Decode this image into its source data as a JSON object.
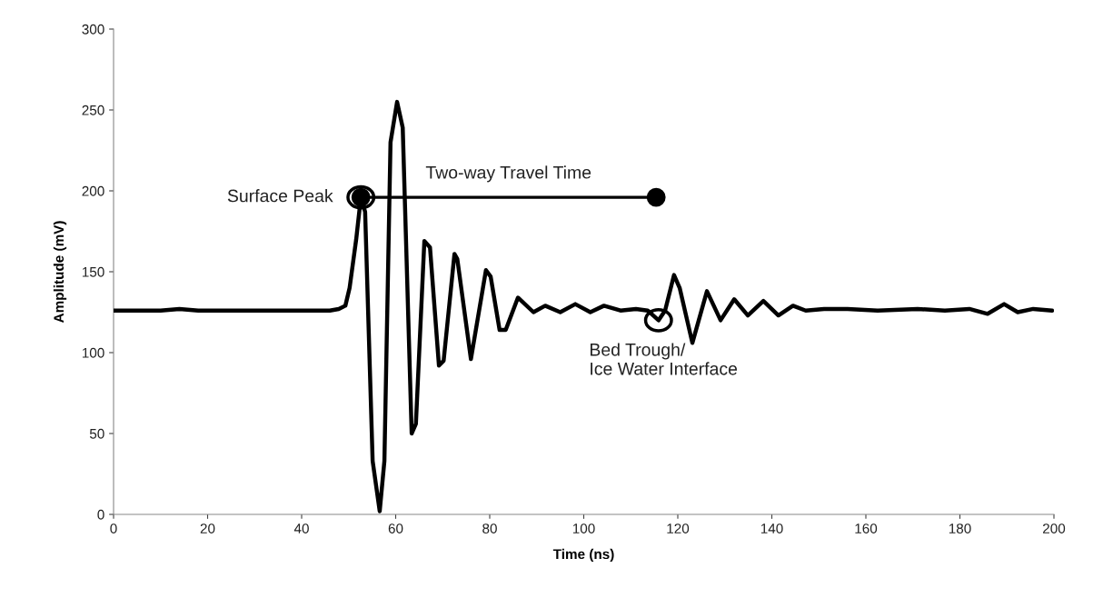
{
  "chart_data": {
    "type": "line",
    "xlabel": "Time (ns)",
    "ylabel": "Amplitude (mV)",
    "xlim": [
      0,
      200
    ],
    "ylim": [
      0,
      300
    ],
    "xticks": [
      0,
      20,
      40,
      60,
      80,
      100,
      120,
      140,
      160,
      180,
      200
    ],
    "yticks": [
      0,
      50,
      100,
      150,
      200,
      250,
      300
    ],
    "grid": false,
    "marker": "none",
    "line_style": "solid",
    "series": [
      {
        "color": "#000000",
        "x": [
          0,
          10,
          14,
          18,
          30,
          40,
          46,
          47.9,
          49.3,
          50.2,
          51.6,
          52.6,
          53.5,
          55.1,
          56.6,
          57.6,
          58.9,
          60.3,
          61.5,
          63.4,
          64.3,
          66.1,
          67.3,
          69.2,
          70.2,
          72.5,
          73.1,
          76.0,
          79.2,
          80.2,
          82.1,
          83.4,
          86,
          89.3,
          91.8,
          95,
          98.2,
          101.4,
          104.3,
          107.8,
          111.1,
          113.6,
          115.9,
          117.3,
          119.2,
          120.4,
          123.1,
          126.2,
          129.1,
          132,
          134.9,
          138.2,
          141.4,
          144.5,
          147.2,
          151.1,
          156.1,
          162.5,
          171,
          176.8,
          182,
          185.9,
          189.4,
          192.3,
          195.6,
          199.6
        ],
        "values": [
          126,
          126,
          127,
          126,
          126,
          126,
          126,
          127,
          129,
          140,
          170,
          196,
          187,
          33,
          2,
          33,
          230,
          255,
          239,
          50,
          56,
          169,
          165,
          92,
          95,
          161,
          158,
          96,
          151,
          147,
          114,
          114,
          134,
          125,
          129,
          125,
          130,
          125,
          129,
          126,
          127,
          126,
          120,
          126,
          148,
          140,
          106,
          138,
          120,
          133,
          123,
          132,
          123,
          129,
          126,
          127,
          127,
          126,
          127,
          126,
          127,
          124,
          130,
          125,
          127,
          126
        ]
      },
      {
        "type": "line",
        "color": "#000000",
        "marker": "circle",
        "x": [
          52.6,
          115.4
        ],
        "values": [
          196,
          196
        ]
      }
    ],
    "annotations": [
      {
        "text": "Surface Peak",
        "x": 52.6,
        "y": 196
      },
      {
        "text": "Two-way Travel Time",
        "x": 84,
        "y": 196
      },
      {
        "text": "Bed Trough/\nIce Water Interface",
        "x": 115.9,
        "y": 120
      }
    ]
  }
}
